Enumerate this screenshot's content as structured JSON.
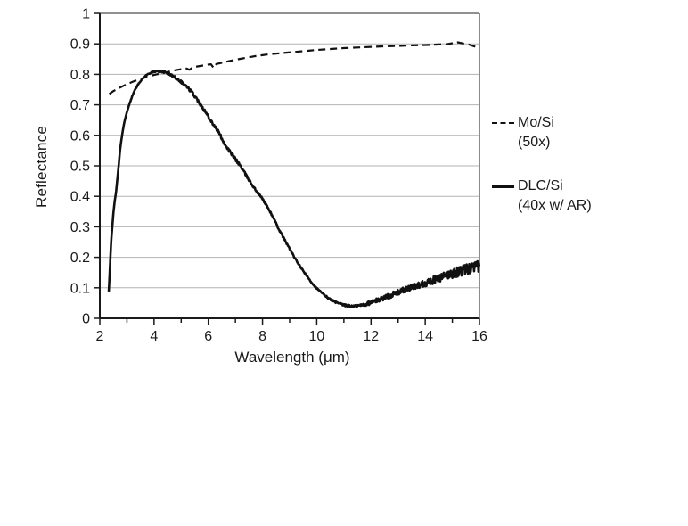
{
  "page": {
    "background": "#ffffff"
  },
  "chart_data": {
    "type": "line",
    "title": "",
    "xlabel": "Wavelength (μm)",
    "ylabel": "Reflectance",
    "xlim": [
      2,
      16
    ],
    "ylim": [
      0,
      1
    ],
    "grid": "horizontal",
    "grid_color": "#b3b3b3",
    "axis_color": "#1a1a1a",
    "border_color": "#4d4d4d",
    "legend_position": "right-outside",
    "x_ticks": {
      "major_values": [
        2,
        4,
        6,
        8,
        10,
        12,
        14,
        16
      ],
      "major_labels": [
        "2",
        "4",
        "6",
        "8",
        "10",
        "12",
        "14",
        "16"
      ],
      "minor_values": [
        3,
        5,
        7,
        9,
        11,
        13,
        15
      ]
    },
    "y_ticks": {
      "values": [
        0,
        0.1,
        0.2,
        0.3,
        0.4,
        0.5,
        0.6,
        0.7,
        0.8,
        0.9,
        1
      ],
      "labels": [
        "0",
        "0.1",
        "0.2",
        "0.3",
        "0.4",
        "0.5",
        "0.6",
        "0.7",
        "0.8",
        "0.9",
        "1"
      ]
    },
    "series": [
      {
        "name": "Mo/Si",
        "qualifier": "(50x)",
        "line_style": "dashed",
        "color": "#111111",
        "points": [
          [
            2.35,
            0.736
          ],
          [
            2.5,
            0.745
          ],
          [
            2.75,
            0.757
          ],
          [
            3.0,
            0.768
          ],
          [
            3.25,
            0.777
          ],
          [
            3.5,
            0.785
          ],
          [
            3.75,
            0.792
          ],
          [
            4.0,
            0.798
          ],
          [
            4.25,
            0.803
          ],
          [
            4.5,
            0.808
          ],
          [
            4.75,
            0.813
          ],
          [
            5.0,
            0.817
          ],
          [
            5.2,
            0.819
          ],
          [
            5.3,
            0.815
          ],
          [
            5.45,
            0.824
          ],
          [
            5.6,
            0.826
          ],
          [
            5.8,
            0.829
          ],
          [
            6.0,
            0.832
          ],
          [
            6.1,
            0.833
          ],
          [
            6.2,
            0.821
          ],
          [
            6.3,
            0.834
          ],
          [
            6.5,
            0.838
          ],
          [
            6.75,
            0.843
          ],
          [
            7.0,
            0.848
          ],
          [
            7.25,
            0.852
          ],
          [
            7.5,
            0.856
          ],
          [
            7.75,
            0.86
          ],
          [
            8.0,
            0.863
          ],
          [
            8.25,
            0.866
          ],
          [
            8.5,
            0.868
          ],
          [
            8.75,
            0.87
          ],
          [
            9.0,
            0.872
          ],
          [
            9.25,
            0.874
          ],
          [
            9.5,
            0.876
          ],
          [
            9.75,
            0.878
          ],
          [
            10.0,
            0.88
          ],
          [
            10.5,
            0.883
          ],
          [
            11.0,
            0.886
          ],
          [
            11.5,
            0.888
          ],
          [
            12.0,
            0.89
          ],
          [
            12.5,
            0.892
          ],
          [
            13.0,
            0.893
          ],
          [
            13.5,
            0.895
          ],
          [
            14.0,
            0.896
          ],
          [
            14.5,
            0.898
          ],
          [
            14.8,
            0.899
          ],
          [
            15.0,
            0.902
          ],
          [
            15.2,
            0.905
          ],
          [
            15.4,
            0.901
          ],
          [
            15.6,
            0.898
          ],
          [
            15.8,
            0.892
          ],
          [
            16.0,
            0.887
          ]
        ]
      },
      {
        "name": "DLC/Si",
        "qualifier": "(40x w/ AR)",
        "line_style": "solid",
        "color": "#111111",
        "points": [
          [
            2.33,
            0.088
          ],
          [
            2.36,
            0.14
          ],
          [
            2.39,
            0.2
          ],
          [
            2.42,
            0.255
          ],
          [
            2.46,
            0.3
          ],
          [
            2.5,
            0.345
          ],
          [
            2.55,
            0.385
          ],
          [
            2.6,
            0.415
          ],
          [
            2.65,
            0.46
          ],
          [
            2.7,
            0.505
          ],
          [
            2.75,
            0.555
          ],
          [
            2.82,
            0.6
          ],
          [
            2.9,
            0.642
          ],
          [
            3.0,
            0.676
          ],
          [
            3.1,
            0.705
          ],
          [
            3.2,
            0.73
          ],
          [
            3.3,
            0.75
          ],
          [
            3.4,
            0.765
          ],
          [
            3.5,
            0.778
          ],
          [
            3.6,
            0.788
          ],
          [
            3.7,
            0.796
          ],
          [
            3.8,
            0.802
          ],
          [
            3.9,
            0.806
          ],
          [
            4.0,
            0.809
          ],
          [
            4.1,
            0.81
          ],
          [
            4.2,
            0.81
          ],
          [
            4.3,
            0.809
          ],
          [
            4.4,
            0.807
          ],
          [
            4.5,
            0.803
          ],
          [
            4.6,
            0.799
          ],
          [
            4.7,
            0.794
          ],
          [
            4.8,
            0.789
          ],
          [
            4.9,
            0.783
          ],
          [
            5.0,
            0.776
          ],
          [
            5.2,
            0.76
          ],
          [
            5.4,
            0.741
          ],
          [
            5.6,
            0.716
          ],
          [
            5.8,
            0.69
          ],
          [
            6.0,
            0.662
          ],
          [
            6.2,
            0.634
          ],
          [
            6.4,
            0.608
          ],
          [
            6.6,
            0.572
          ],
          [
            6.8,
            0.546
          ],
          [
            7.0,
            0.522
          ],
          [
            7.2,
            0.498
          ],
          [
            7.4,
            0.468
          ],
          [
            7.6,
            0.44
          ],
          [
            7.8,
            0.414
          ],
          [
            8.0,
            0.392
          ],
          [
            8.2,
            0.362
          ],
          [
            8.4,
            0.33
          ],
          [
            8.6,
            0.292
          ],
          [
            8.8,
            0.26
          ],
          [
            9.0,
            0.228
          ],
          [
            9.2,
            0.196
          ],
          [
            9.4,
            0.168
          ],
          [
            9.6,
            0.143
          ],
          [
            9.8,
            0.118
          ],
          [
            10.0,
            0.098
          ],
          [
            10.2,
            0.082
          ],
          [
            10.4,
            0.068
          ],
          [
            10.6,
            0.057
          ],
          [
            10.8,
            0.049
          ],
          [
            11.0,
            0.043
          ],
          [
            11.2,
            0.04
          ],
          [
            11.4,
            0.039
          ],
          [
            11.6,
            0.042
          ],
          [
            11.8,
            0.046
          ],
          [
            12.0,
            0.052
          ],
          [
            12.2,
            0.058
          ],
          [
            12.4,
            0.065
          ],
          [
            12.6,
            0.071
          ],
          [
            12.8,
            0.078
          ],
          [
            13.0,
            0.085
          ],
          [
            13.2,
            0.092
          ],
          [
            13.4,
            0.098
          ],
          [
            13.6,
            0.104
          ],
          [
            13.8,
            0.11
          ],
          [
            14.0,
            0.116
          ],
          [
            14.2,
            0.122
          ],
          [
            14.4,
            0.128
          ],
          [
            14.6,
            0.134
          ],
          [
            14.8,
            0.141
          ],
          [
            15.0,
            0.147
          ],
          [
            15.2,
            0.152
          ],
          [
            15.4,
            0.157
          ],
          [
            15.6,
            0.162
          ],
          [
            15.8,
            0.166
          ],
          [
            16.0,
            0.17
          ]
        ],
        "noise_amplitude": [
          [
            2.33,
            0.0
          ],
          [
            3.9,
            0.002
          ],
          [
            4.6,
            0.004
          ],
          [
            5.5,
            0.005
          ],
          [
            7.0,
            0.005
          ],
          [
            8.0,
            0.003
          ],
          [
            9.8,
            0.002
          ],
          [
            10.8,
            0.003
          ],
          [
            11.5,
            0.005
          ],
          [
            12.5,
            0.008
          ],
          [
            13.5,
            0.01
          ],
          [
            14.5,
            0.013
          ],
          [
            15.2,
            0.016
          ],
          [
            16.0,
            0.019
          ]
        ]
      }
    ]
  }
}
